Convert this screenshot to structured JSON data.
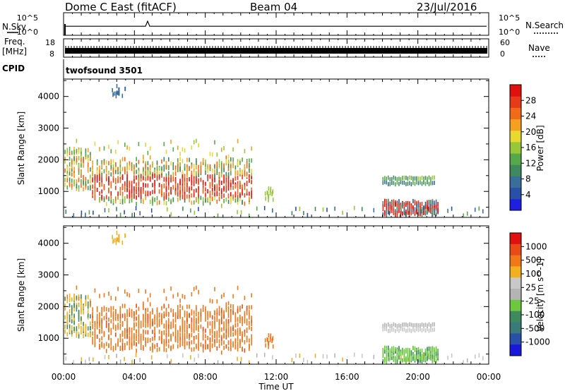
{
  "header": {
    "title": "Dome C East (fitACF)",
    "beam": "Beam 04",
    "date": "23/Jul/2016"
  },
  "top_panels": {
    "nsky_label": "N.Sky",
    "nsearch_label": "N.Search",
    "nsky_ticks": [
      "10^5",
      "10^0"
    ],
    "nsearch_ticks": [
      "10^5",
      "10^0"
    ],
    "freq_label": "Freq.",
    "freq_unit": "[MHz]",
    "freq_ticks": [
      "18",
      "8"
    ],
    "nave_label": "Nave",
    "nave_ticks": [
      "60",
      "0"
    ],
    "cpid_label": "CPID",
    "cpid_value": "twofsound 3501"
  },
  "colors": {
    "power_scale": [
      "#1f1fe0",
      "#2850a8",
      "#3a6e9a",
      "#3e8a5e",
      "#56a84a",
      "#98c83a",
      "#e8d830",
      "#f4a020",
      "#f06a1a",
      "#e63a1a",
      "#e01010"
    ],
    "velocity_scale": [
      "#1818d8",
      "#2850a8",
      "#3a7a7a",
      "#3e8a5e",
      "#6cc83c",
      "#b4b4b4",
      "#c8c8c8",
      "#f0b020",
      "#f07818",
      "#e84a18",
      "#e01010"
    ]
  },
  "chart_data": [
    {
      "type": "heatmap",
      "panel": "power",
      "ylabel": "Slant Range [km]",
      "ylim": [
        180,
        4550
      ],
      "yticks": [
        "1000",
        "2000",
        "3000",
        "4000"
      ],
      "xlim": [
        0,
        24
      ],
      "colorbar_label": "Power [dB]",
      "colorbar_ticks": [
        "4",
        "8",
        "12",
        "16",
        "20",
        "24",
        "28"
      ],
      "colorbar_range": [
        0,
        32
      ]
    },
    {
      "type": "heatmap",
      "panel": "velocity",
      "ylabel": "Slant Range [km]",
      "ylim": [
        180,
        4550
      ],
      "yticks": [
        "1000",
        "2000",
        "3000",
        "4000"
      ],
      "xlim": [
        0,
        24
      ],
      "xlabel": "Time UT",
      "xticks": [
        "00:00",
        "04:00",
        "08:00",
        "12:00",
        "16:00",
        "20:00",
        "00:00"
      ],
      "colorbar_label": "Velocity [m s^-1]",
      "colorbar_ticks": [
        "1000",
        "500",
        "100",
        "25",
        "-25",
        "-100",
        "-500",
        "-1000"
      ]
    }
  ]
}
